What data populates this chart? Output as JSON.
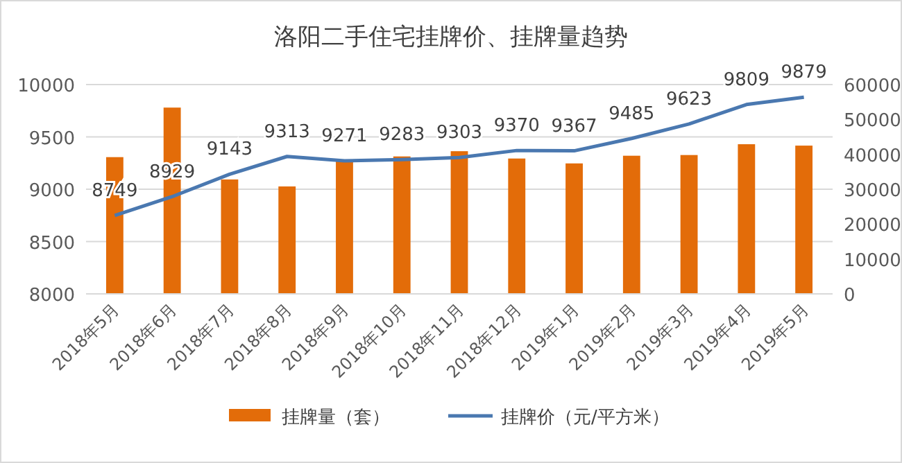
{
  "chart_data": {
    "type": "bar",
    "title": "洛阳二手住宅挂牌价、挂牌量趋势",
    "categories": [
      "2018年5月",
      "2018年6月",
      "2018年7月",
      "2018年8月",
      "2018年9月",
      "2018年10月",
      "2018年11月",
      "2018年12月",
      "2019年1月",
      "2019年2月",
      "2019年3月",
      "2019年4月",
      "2019年5月"
    ],
    "series": [
      {
        "name": "挂牌量（套）",
        "axis": "y2",
        "color": "#e36c09",
        "values": [
          39200,
          53400,
          32800,
          30800,
          38100,
          39400,
          40900,
          38800,
          37400,
          39600,
          39800,
          42900,
          42500
        ]
      },
      {
        "name": "挂牌价（元/平方米）",
        "type": "line",
        "color": "#4a78b0",
        "values": [
          8749,
          8929,
          9143,
          9313,
          9271,
          9283,
          9303,
          9370,
          9367,
          9485,
          9623,
          9809,
          9879
        ],
        "value_labels": [
          "8749",
          "8929",
          "9143",
          "9313",
          "9271",
          "9283",
          "9303",
          "9370",
          "9367",
          "9485",
          "9623",
          "9809",
          "9879"
        ]
      }
    ],
    "ylim": [
      8000,
      10000
    ],
    "yticks": [
      8000,
      8500,
      9000,
      9500,
      10000
    ],
    "y2lim": [
      0,
      60000
    ],
    "y2ticks": [
      0,
      10000,
      20000,
      30000,
      40000,
      50000,
      60000
    ],
    "grid": "y",
    "legend": "bottom",
    "marker": "none",
    "line_style": "solid"
  }
}
